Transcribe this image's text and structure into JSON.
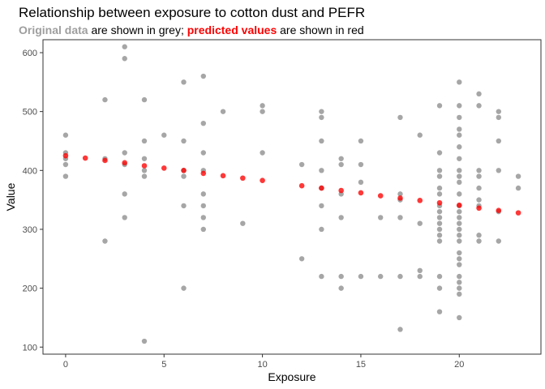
{
  "title": "Relationship between exposure to cotton dust and PEFR",
  "subtitle": {
    "part1": "Original data",
    "part2": " are shown in grey; ",
    "part3": "predicted values",
    "part4": " are shown in red"
  },
  "colors": {
    "original": "#a6a6a6",
    "predicted": "#ff0000",
    "panel_border": "#333333",
    "background": "#ffffff"
  },
  "chart_data": {
    "type": "scatter",
    "title": "Relationship between exposure to cotton dust and PEFR",
    "xlabel": "Exposure",
    "ylabel": "Value",
    "xlim": [
      -1.15,
      24.15
    ],
    "ylim": [
      88,
      622
    ],
    "x_ticks": [
      0,
      5,
      10,
      15,
      20
    ],
    "y_ticks": [
      100,
      200,
      300,
      400,
      500,
      600
    ],
    "grid": false,
    "series": [
      {
        "name": "Original data",
        "points": [
          [
            0,
            460
          ],
          [
            0,
            430
          ],
          [
            0,
            420
          ],
          [
            0,
            410
          ],
          [
            0,
            390
          ],
          [
            2,
            520
          ],
          [
            2,
            420
          ],
          [
            2,
            280
          ],
          [
            3,
            610
          ],
          [
            3,
            590
          ],
          [
            3,
            430
          ],
          [
            3,
            410
          ],
          [
            3,
            360
          ],
          [
            3,
            320
          ],
          [
            4,
            520
          ],
          [
            4,
            450
          ],
          [
            4,
            420
          ],
          [
            4,
            400
          ],
          [
            4,
            390
          ],
          [
            4,
            110
          ],
          [
            5,
            460
          ],
          [
            6,
            550
          ],
          [
            6,
            450
          ],
          [
            6,
            400
          ],
          [
            6,
            390
          ],
          [
            6,
            340
          ],
          [
            6,
            200
          ],
          [
            7,
            560
          ],
          [
            7,
            480
          ],
          [
            7,
            430
          ],
          [
            7,
            400
          ],
          [
            7,
            360
          ],
          [
            7,
            340
          ],
          [
            7,
            320
          ],
          [
            7,
            300
          ],
          [
            8,
            500
          ],
          [
            9,
            310
          ],
          [
            10,
            510
          ],
          [
            10,
            500
          ],
          [
            10,
            430
          ],
          [
            12,
            410
          ],
          [
            12,
            250
          ],
          [
            13,
            500
          ],
          [
            13,
            490
          ],
          [
            13,
            450
          ],
          [
            13,
            400
          ],
          [
            13,
            370
          ],
          [
            13,
            340
          ],
          [
            13,
            300
          ],
          [
            13,
            220
          ],
          [
            14,
            420
          ],
          [
            14,
            410
          ],
          [
            14,
            360
          ],
          [
            14,
            320
          ],
          [
            14,
            220
          ],
          [
            14,
            200
          ],
          [
            15,
            450
          ],
          [
            15,
            410
          ],
          [
            15,
            380
          ],
          [
            15,
            220
          ],
          [
            16,
            320
          ],
          [
            16,
            220
          ],
          [
            17,
            490
          ],
          [
            17,
            360
          ],
          [
            17,
            350
          ],
          [
            17,
            320
          ],
          [
            17,
            220
          ],
          [
            17,
            130
          ],
          [
            18,
            460
          ],
          [
            18,
            310
          ],
          [
            18,
            230
          ],
          [
            18,
            220
          ],
          [
            19,
            510
          ],
          [
            19,
            430
          ],
          [
            19,
            400
          ],
          [
            19,
            390
          ],
          [
            19,
            370
          ],
          [
            19,
            360
          ],
          [
            19,
            340
          ],
          [
            19,
            330
          ],
          [
            19,
            320
          ],
          [
            19,
            310
          ],
          [
            19,
            300
          ],
          [
            19,
            290
          ],
          [
            19,
            280
          ],
          [
            19,
            220
          ],
          [
            19,
            200
          ],
          [
            19,
            160
          ],
          [
            20,
            550
          ],
          [
            20,
            510
          ],
          [
            20,
            490
          ],
          [
            20,
            470
          ],
          [
            20,
            460
          ],
          [
            20,
            440
          ],
          [
            20,
            420
          ],
          [
            20,
            400
          ],
          [
            20,
            390
          ],
          [
            20,
            380
          ],
          [
            20,
            360
          ],
          [
            20,
            340
          ],
          [
            20,
            330
          ],
          [
            20,
            320
          ],
          [
            20,
            310
          ],
          [
            20,
            300
          ],
          [
            20,
            290
          ],
          [
            20,
            280
          ],
          [
            20,
            260
          ],
          [
            20,
            250
          ],
          [
            20,
            240
          ],
          [
            20,
            220
          ],
          [
            20,
            210
          ],
          [
            20,
            200
          ],
          [
            20,
            190
          ],
          [
            20,
            150
          ],
          [
            21,
            530
          ],
          [
            21,
            510
          ],
          [
            21,
            400
          ],
          [
            21,
            390
          ],
          [
            21,
            370
          ],
          [
            21,
            350
          ],
          [
            21,
            340
          ],
          [
            21,
            290
          ],
          [
            21,
            280
          ],
          [
            22,
            500
          ],
          [
            22,
            490
          ],
          [
            22,
            450
          ],
          [
            22,
            400
          ],
          [
            22,
            330
          ],
          [
            22,
            280
          ],
          [
            23,
            390
          ],
          [
            23,
            370
          ]
        ]
      },
      {
        "name": "predicted values",
        "points": [
          [
            0,
            425
          ],
          [
            1,
            421
          ],
          [
            2,
            417
          ],
          [
            3,
            413
          ],
          [
            4,
            408
          ],
          [
            5,
            404
          ],
          [
            6,
            400
          ],
          [
            7,
            395
          ],
          [
            8,
            391
          ],
          [
            9,
            387
          ],
          [
            10,
            383
          ],
          [
            12,
            374
          ],
          [
            13,
            370
          ],
          [
            14,
            366
          ],
          [
            15,
            362
          ],
          [
            16,
            357
          ],
          [
            17,
            353
          ],
          [
            18,
            349
          ],
          [
            19,
            345
          ],
          [
            20,
            341
          ],
          [
            21,
            336
          ],
          [
            22,
            332
          ],
          [
            23,
            328
          ]
        ]
      }
    ]
  }
}
